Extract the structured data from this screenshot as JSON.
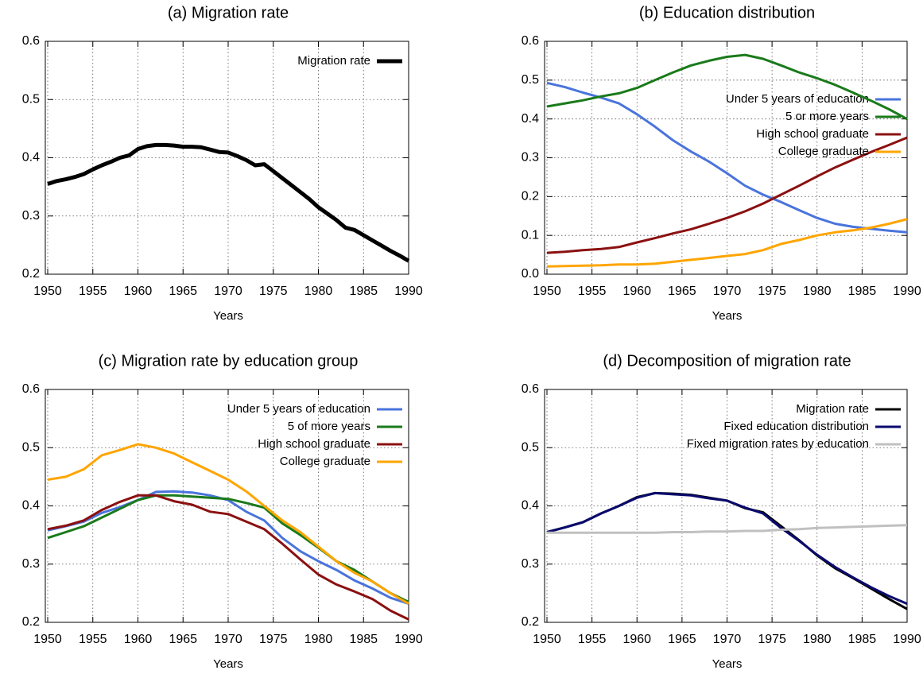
{
  "chart_data": [
    {
      "type": "line",
      "title": "(a) Migration rate",
      "xlabel": "Years",
      "x": [
        1950,
        1951,
        1952,
        1953,
        1954,
        1955,
        1956,
        1957,
        1958,
        1959,
        1960,
        1961,
        1962,
        1963,
        1964,
        1965,
        1966,
        1967,
        1968,
        1969,
        1970,
        1971,
        1972,
        1973,
        1974,
        1975,
        1976,
        1977,
        1978,
        1979,
        1980,
        1981,
        1982,
        1983,
        1984,
        1985,
        1986,
        1987,
        1988,
        1989,
        1990
      ],
      "series": [
        {
          "name": "Migration rate",
          "color": "#000000",
          "values": [
            0.355,
            0.36,
            0.363,
            0.367,
            0.372,
            0.38,
            0.387,
            0.393,
            0.4,
            0.404,
            0.415,
            0.42,
            0.422,
            0.422,
            0.421,
            0.419,
            0.419,
            0.418,
            0.414,
            0.41,
            0.409,
            0.403,
            0.396,
            0.387,
            0.389,
            0.377,
            0.365,
            0.353,
            0.341,
            0.329,
            0.315,
            0.304,
            0.293,
            0.28,
            0.276,
            0.267,
            0.258,
            0.249,
            0.24,
            0.232,
            0.223
          ]
        }
      ],
      "xlim": [
        1950,
        1990
      ],
      "ylim": [
        0.2,
        0.6
      ],
      "xticks": [
        1950,
        1955,
        1960,
        1965,
        1970,
        1975,
        1980,
        1985,
        1990
      ],
      "yticks": [
        0.2,
        0.3,
        0.4,
        0.5,
        0.6
      ],
      "grid": true,
      "legend": "upper right"
    },
    {
      "type": "line",
      "title": "(b) Education distribution",
      "xlabel": "Years",
      "x": [
        1950,
        1952,
        1954,
        1956,
        1958,
        1960,
        1962,
        1964,
        1966,
        1968,
        1970,
        1972,
        1974,
        1976,
        1978,
        1980,
        1982,
        1984,
        1986,
        1988,
        1990
      ],
      "series": [
        {
          "name": "Under 5 years of education",
          "color": "#4a74dc",
          "values": [
            0.493,
            0.482,
            0.468,
            0.455,
            0.44,
            0.412,
            0.38,
            0.345,
            0.316,
            0.29,
            0.26,
            0.228,
            0.205,
            0.186,
            0.165,
            0.145,
            0.13,
            0.122,
            0.117,
            0.112,
            0.108
          ]
        },
        {
          "name": "5 or more years",
          "color": "#1a7a1a",
          "values": [
            0.432,
            0.44,
            0.448,
            0.458,
            0.466,
            0.48,
            0.5,
            0.52,
            0.538,
            0.55,
            0.56,
            0.565,
            0.555,
            0.538,
            0.52,
            0.505,
            0.488,
            0.468,
            0.447,
            0.425,
            0.4
          ]
        },
        {
          "name": "High school graduate",
          "color": "#8b1010",
          "values": [
            0.055,
            0.058,
            0.062,
            0.065,
            0.07,
            0.082,
            0.093,
            0.105,
            0.116,
            0.13,
            0.145,
            0.162,
            0.182,
            0.205,
            0.228,
            0.252,
            0.275,
            0.295,
            0.315,
            0.333,
            0.352
          ]
        },
        {
          "name": "College graduate",
          "color": "#ffa500",
          "values": [
            0.02,
            0.021,
            0.022,
            0.023,
            0.025,
            0.025,
            0.027,
            0.032,
            0.037,
            0.042,
            0.047,
            0.052,
            0.062,
            0.078,
            0.088,
            0.1,
            0.108,
            0.113,
            0.12,
            0.13,
            0.142
          ]
        }
      ],
      "xlim": [
        1950,
        1990
      ],
      "ylim": [
        0,
        0.6
      ],
      "xticks": [
        1950,
        1955,
        1960,
        1965,
        1970,
        1975,
        1980,
        1985,
        1990
      ],
      "yticks": [
        {
          "value": 0,
          "label": "0.0"
        },
        0.1,
        0.2,
        0.3,
        0.4,
        0.5,
        0.6
      ],
      "grid": true,
      "legend": "upper right"
    },
    {
      "type": "line",
      "title": "(c) Migration rate by education group",
      "xlabel": "Years",
      "x": [
        1950,
        1952,
        1954,
        1956,
        1958,
        1960,
        1962,
        1964,
        1966,
        1968,
        1970,
        1972,
        1974,
        1976,
        1978,
        1980,
        1982,
        1984,
        1986,
        1988,
        1990
      ],
      "series": [
        {
          "name": "Under 5 years of education",
          "color": "#4a74dc",
          "values": [
            0.358,
            0.365,
            0.373,
            0.388,
            0.398,
            0.41,
            0.424,
            0.425,
            0.423,
            0.418,
            0.41,
            0.39,
            0.375,
            0.345,
            0.322,
            0.305,
            0.29,
            0.272,
            0.258,
            0.242,
            0.232
          ]
        },
        {
          "name": "5 of more years",
          "color": "#1a7a1a",
          "values": [
            0.345,
            0.355,
            0.365,
            0.38,
            0.395,
            0.41,
            0.418,
            0.418,
            0.416,
            0.414,
            0.412,
            0.405,
            0.397,
            0.37,
            0.35,
            0.328,
            0.305,
            0.29,
            0.27,
            0.25,
            0.235
          ]
        },
        {
          "name": "High school graduate",
          "color": "#8b1010",
          "values": [
            0.36,
            0.366,
            0.375,
            0.393,
            0.407,
            0.418,
            0.418,
            0.408,
            0.402,
            0.39,
            0.386,
            0.373,
            0.36,
            0.335,
            0.308,
            0.282,
            0.265,
            0.253,
            0.24,
            0.22,
            0.205
          ]
        },
        {
          "name": "College graduate",
          "color": "#ffa500",
          "values": [
            0.445,
            0.45,
            0.463,
            0.487,
            0.496,
            0.506,
            0.5,
            0.49,
            0.475,
            0.46,
            0.445,
            0.425,
            0.4,
            0.375,
            0.355,
            0.33,
            0.305,
            0.285,
            0.27,
            0.25,
            0.232
          ]
        }
      ],
      "xlim": [
        1950,
        1990
      ],
      "ylim": [
        0.2,
        0.6
      ],
      "xticks": [
        1950,
        1955,
        1960,
        1965,
        1970,
        1975,
        1980,
        1985,
        1990
      ],
      "yticks": [
        0.2,
        0.3,
        0.4,
        0.5,
        0.6
      ],
      "grid": true,
      "legend": "upper right"
    },
    {
      "type": "line",
      "title": "(d) Decomposition of migration rate",
      "xlabel": "Years",
      "x": [
        1950,
        1952,
        1954,
        1956,
        1958,
        1960,
        1962,
        1964,
        1966,
        1968,
        1970,
        1972,
        1974,
        1976,
        1978,
        1980,
        1982,
        1984,
        1986,
        1988,
        1990
      ],
      "series": [
        {
          "name": "Migration rate",
          "color": "#000000",
          "values": [
            0.355,
            0.363,
            0.372,
            0.387,
            0.4,
            0.415,
            0.422,
            0.421,
            0.419,
            0.414,
            0.409,
            0.396,
            0.389,
            0.365,
            0.341,
            0.315,
            0.293,
            0.276,
            0.258,
            0.24,
            0.223
          ]
        },
        {
          "name": "Fixed education distribution",
          "color": "#0a0a6e",
          "values": [
            0.355,
            0.363,
            0.372,
            0.387,
            0.4,
            0.414,
            0.422,
            0.42,
            0.418,
            0.413,
            0.409,
            0.397,
            0.387,
            0.362,
            0.34,
            0.316,
            0.295,
            0.277,
            0.26,
            0.245,
            0.232
          ]
        },
        {
          "name": "Fixed migration rates by education",
          "color": "#c0c0c0",
          "values": [
            0.354,
            0.354,
            0.354,
            0.354,
            0.354,
            0.354,
            0.354,
            0.355,
            0.355,
            0.356,
            0.356,
            0.357,
            0.357,
            0.359,
            0.36,
            0.362,
            0.363,
            0.364,
            0.365,
            0.366,
            0.367
          ]
        }
      ],
      "xlim": [
        1950,
        1990
      ],
      "ylim": [
        0.2,
        0.6
      ],
      "xticks": [
        1950,
        1955,
        1960,
        1965,
        1970,
        1975,
        1980,
        1985,
        1990
      ],
      "yticks": [
        0.2,
        0.3,
        0.4,
        0.5,
        0.6
      ],
      "grid": true,
      "legend": "upper right"
    }
  ]
}
